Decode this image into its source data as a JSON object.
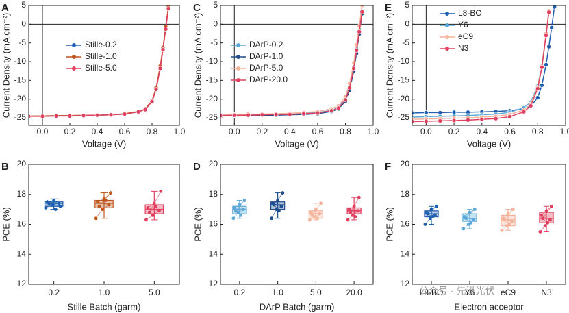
{
  "chart_data": [
    {
      "type": "line",
      "label": "A",
      "x_label": "Voltage (V)",
      "y_label": "Current Density (mA cm⁻²)",
      "xlim": [
        -0.1,
        1.0
      ],
      "ylim": [
        -27,
        5
      ],
      "xticks": [
        {
          "value": 0,
          "label": "0.0"
        },
        0.2,
        0.4,
        0.6,
        0.8,
        {
          "value": 1,
          "label": "1.0"
        }
      ],
      "yticks": [
        -25,
        -20,
        -15,
        -10,
        -5,
        0,
        5
      ],
      "zero_lines": true,
      "legend": "center",
      "x": [
        -0.1,
        0,
        0.1,
        0.2,
        0.3,
        0.4,
        0.5,
        0.6,
        0.7,
        0.75,
        0.8,
        0.83,
        0.86,
        0.88,
        0.9,
        0.92
      ],
      "series": [
        {
          "name": "Stille-0.2",
          "color": "#1f5fae",
          "values": [
            -24.6,
            -24.5,
            -24.5,
            -24.4,
            -24.4,
            -24.3,
            -24.2,
            -24.0,
            -23.4,
            -22.7,
            -20.6,
            -17.2,
            -11.5,
            -6.5,
            -1,
            4.5
          ]
        },
        {
          "name": "Stille-1.0",
          "color": "#c0561c",
          "values": [
            -24.5,
            -24.5,
            -24.4,
            -24.4,
            -24.3,
            -24.3,
            -24.2,
            -23.9,
            -23.3,
            -22.6,
            -20.4,
            -17,
            -11.2,
            -6.2,
            -0.7,
            4.8
          ]
        },
        {
          "name": "Stille-5.0",
          "color": "#e0405f",
          "values": [
            -24.6,
            -24.6,
            -24.5,
            -24.5,
            -24.4,
            -24.3,
            -24.2,
            -24.0,
            -23.4,
            -22.8,
            -20.7,
            -17.4,
            -11.8,
            -6.8,
            -1.3,
            4.2
          ]
        }
      ]
    },
    {
      "type": "line",
      "label": "C",
      "x_label": "Voltage (V)",
      "y_label": "Current Density (mA cm⁻²)",
      "xlim": [
        -0.1,
        1.0
      ],
      "ylim": [
        -27,
        5
      ],
      "xticks": [
        {
          "value": 0,
          "label": "0.0"
        },
        0.2,
        0.4,
        0.6,
        0.8,
        {
          "value": 1,
          "label": "1.0"
        }
      ],
      "yticks": [
        -25,
        -20,
        -15,
        -10,
        -5,
        0,
        5
      ],
      "zero_lines": true,
      "legend": "center left",
      "x": [
        -0.1,
        0,
        0.1,
        0.2,
        0.3,
        0.4,
        0.5,
        0.6,
        0.7,
        0.75,
        0.8,
        0.83,
        0.86,
        0.88,
        0.9,
        0.92
      ],
      "series": [
        {
          "name": "DArP-0.2",
          "color": "#5aa7d8",
          "values": [
            -24.3,
            -24.2,
            -24.2,
            -24.1,
            -24.0,
            -24.0,
            -23.8,
            -23.6,
            -23.0,
            -22.2,
            -20.0,
            -16.8,
            -11.5,
            -6.8,
            -1.8,
            3.5
          ]
        },
        {
          "name": "DArP-1.0",
          "color": "#1f4e8c",
          "values": [
            -24.5,
            -24.4,
            -24.4,
            -24.3,
            -24.3,
            -24.2,
            -24.1,
            -23.9,
            -23.3,
            -22.6,
            -20.6,
            -17.6,
            -12.5,
            -7.8,
            -2.6,
            2.8
          ]
        },
        {
          "name": "DArP-5.0",
          "color": "#f4b39a",
          "values": [
            -24.2,
            -24.1,
            -24.0,
            -24.0,
            -23.9,
            -23.8,
            -23.6,
            -23.3,
            -22.6,
            -21.8,
            -19.3,
            -15.8,
            -10.3,
            -5.5,
            -0.5,
            5
          ]
        },
        {
          "name": "DArP-20.0",
          "color": "#e0405f",
          "values": [
            -24.4,
            -24.3,
            -24.3,
            -24.2,
            -24.1,
            -24.1,
            -23.9,
            -23.7,
            -23.1,
            -22.4,
            -20.2,
            -17.0,
            -11.8,
            -7.0,
            -2.0,
            3.3
          ]
        }
      ]
    },
    {
      "type": "line",
      "label": "E",
      "x_label": "Voltage (V)",
      "y_label": "Current Density (mA cm⁻²)",
      "xlim": [
        -0.1,
        1.0
      ],
      "ylim": [
        -27,
        5
      ],
      "xticks": [
        {
          "value": 0,
          "label": "0.0"
        },
        0.2,
        0.4,
        0.6,
        0.8,
        {
          "value": 1,
          "label": "1.0"
        }
      ],
      "yticks": [
        -25,
        -20,
        -15,
        -10,
        -5,
        0,
        5
      ],
      "zero_lines": true,
      "legend": "upper left",
      "x": [
        -0.1,
        0,
        0.1,
        0.2,
        0.3,
        0.4,
        0.5,
        0.6,
        0.7,
        0.75,
        0.8,
        0.83,
        0.86,
        0.88,
        0.9,
        0.92
      ],
      "series": [
        {
          "name": "L8-BO",
          "color": "#1f5fae",
          "values": [
            -23.7,
            -23.6,
            -23.6,
            -23.5,
            -23.5,
            -23.4,
            -23.3,
            -23.1,
            -22.6,
            -21.9,
            -19.6,
            -16.3,
            -10.8,
            -6.0,
            -0.9,
            4.6
          ]
        },
        {
          "name": "Y6",
          "color": "#5aa7d8",
          "values": [
            -24.8,
            -24.7,
            -24.6,
            -24.5,
            -24.4,
            -24.2,
            -24.0,
            -23.5,
            -22.3,
            -20.8,
            -16.5,
            -11.0,
            -2.5,
            3.5,
            null,
            null
          ]
        },
        {
          "name": "eC9",
          "color": "#f4b39a",
          "values": [
            -25.4,
            -25.3,
            -25.2,
            -25.1,
            -25.0,
            -24.8,
            -24.6,
            -24.1,
            -22.9,
            -21.3,
            -16.8,
            -11.2,
            -2.5,
            3.6,
            null,
            null
          ]
        },
        {
          "name": "N3",
          "color": "#e0405f",
          "values": [
            -26.0,
            -25.9,
            -25.8,
            -25.7,
            -25.6,
            -25.4,
            -25.2,
            -24.7,
            -23.4,
            -21.8,
            -17.2,
            -11.5,
            -3.0,
            3.2,
            null,
            null
          ]
        }
      ]
    },
    {
      "type": "box",
      "label": "B",
      "x_label": "Stille Batch (garm)",
      "y_label": "PCE (%)",
      "ylim": [
        12,
        20
      ],
      "yticks": [
        12,
        14,
        16,
        18,
        20
      ],
      "categories": [
        "0.2",
        "1.0",
        "5.0"
      ],
      "colors": [
        "#1f5fae",
        "#c0561c",
        "#e0405f"
      ],
      "boxes": [
        {
          "min": 17.0,
          "q1": 17.2,
          "median": 17.4,
          "q3": 17.5,
          "max": 17.7,
          "points": [
            17.1,
            17.3,
            17.4,
            17.5,
            17.6,
            17.2,
            17.4,
            17.0
          ]
        },
        {
          "min": 16.4,
          "q1": 17.1,
          "median": 17.4,
          "q3": 17.6,
          "max": 18.1,
          "points": [
            16.4,
            17.0,
            17.3,
            17.5,
            17.7,
            18.1,
            17.2,
            17.6
          ]
        },
        {
          "min": 16.3,
          "q1": 16.7,
          "median": 17.0,
          "q3": 17.3,
          "max": 18.2,
          "points": [
            16.3,
            16.6,
            16.9,
            17.1,
            17.4,
            18.2,
            16.8,
            17.2
          ]
        }
      ]
    },
    {
      "type": "box",
      "label": "D",
      "x_label": "DArP Batch (garm)",
      "y_label": "PCE (%)",
      "ylim": [
        12,
        20
      ],
      "yticks": [
        12,
        14,
        16,
        18,
        20
      ],
      "categories": [
        "0.2",
        "1.0",
        "5.0",
        "20.0"
      ],
      "colors": [
        "#5aa7d8",
        "#1f4e8c",
        "#f4b39a",
        "#e0405f"
      ],
      "boxes": [
        {
          "min": 16.4,
          "q1": 16.7,
          "median": 17.0,
          "q3": 17.2,
          "max": 17.6,
          "points": [
            16.4,
            16.8,
            17.0,
            17.1,
            17.3,
            17.6,
            16.9,
            16.6
          ]
        },
        {
          "min": 16.4,
          "q1": 17.0,
          "median": 17.3,
          "q3": 17.5,
          "max": 18.1,
          "points": [
            16.4,
            17.0,
            17.2,
            17.4,
            17.6,
            18.1,
            17.3,
            16.9
          ]
        },
        {
          "min": 16.3,
          "q1": 16.4,
          "median": 16.7,
          "q3": 16.9,
          "max": 17.4,
          "points": [
            16.3,
            16.5,
            16.7,
            16.8,
            17.0,
            17.4,
            16.6,
            16.4
          ]
        },
        {
          "min": 16.3,
          "q1": 16.7,
          "median": 16.9,
          "q3": 17.1,
          "max": 17.8,
          "points": [
            16.3,
            16.6,
            16.9,
            17.0,
            17.2,
            17.8,
            16.8,
            16.5
          ]
        }
      ]
    },
    {
      "type": "box",
      "label": "F",
      "x_label": "Electron acceptor",
      "y_label": "PCE (%)",
      "ylim": [
        12,
        20
      ],
      "yticks": [
        12,
        14,
        16,
        18,
        20
      ],
      "categories": [
        "L8-BO",
        "Y6",
        "eC9",
        "N3"
      ],
      "colors": [
        "#1f5fae",
        "#5aa7d8",
        "#f4b39a",
        "#e0405f"
      ],
      "boxes": [
        {
          "min": 16.0,
          "q1": 16.5,
          "median": 16.7,
          "q3": 16.9,
          "max": 17.2,
          "points": [
            16.0,
            16.4,
            16.6,
            16.8,
            17.0,
            17.2,
            16.7,
            16.5
          ]
        },
        {
          "min": 15.7,
          "q1": 16.2,
          "median": 16.4,
          "q3": 16.7,
          "max": 17.0,
          "points": [
            15.7,
            16.0,
            16.3,
            16.5,
            16.8,
            17.0,
            16.4,
            16.1
          ]
        },
        {
          "min": 15.6,
          "q1": 15.9,
          "median": 16.3,
          "q3": 16.6,
          "max": 17.0,
          "points": [
            15.6,
            15.9,
            16.2,
            16.4,
            16.7,
            17.0,
            16.3,
            16.0
          ]
        },
        {
          "min": 15.5,
          "q1": 16.1,
          "median": 16.4,
          "q3": 16.8,
          "max": 17.2,
          "points": [
            15.5,
            15.9,
            16.3,
            16.6,
            16.9,
            17.2,
            16.4,
            16.1
          ]
        }
      ]
    }
  ],
  "watermark": "公众号 · 先进光伏"
}
